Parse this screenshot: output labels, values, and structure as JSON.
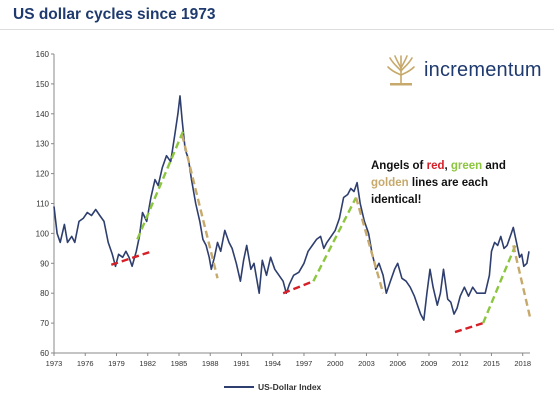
{
  "header": {
    "title": "US dollar cycles since 1973"
  },
  "logo": {
    "name": "incrementum",
    "icon": "tree-icon",
    "color": "#c6a96b"
  },
  "annotation": {
    "part1": "Angels of ",
    "red_word": "red",
    "sep1": ", ",
    "green_word": "green",
    "part2": " and",
    "gold_word": "golden",
    "part3": " lines are each identical!"
  },
  "chart_data": {
    "type": "line",
    "title": "US dollar cycles since 1973",
    "xlabel": "",
    "ylabel": "",
    "xlim": [
      1973,
      2018.7
    ],
    "ylim": [
      60,
      160
    ],
    "yticks": [
      60,
      70,
      80,
      90,
      100,
      110,
      120,
      130,
      140,
      150,
      160
    ],
    "xticks": [
      "1973",
      "1976",
      "1979",
      "1982",
      "1985",
      "1988",
      "1991",
      "1994",
      "1997",
      "2000",
      "2003",
      "2006",
      "2009",
      "2012",
      "2015",
      "2018"
    ],
    "legend": {
      "position": "bottom",
      "entries": [
        "US-Dollar Index"
      ]
    },
    "grid": false,
    "series": [
      {
        "name": "US-Dollar Index",
        "color": "#2e3e6e",
        "points": [
          [
            1973.0,
            109
          ],
          [
            1973.3,
            100
          ],
          [
            1973.6,
            97
          ],
          [
            1974.0,
            103
          ],
          [
            1974.3,
            97
          ],
          [
            1974.7,
            99
          ],
          [
            1975.0,
            97
          ],
          [
            1975.4,
            104
          ],
          [
            1975.8,
            105
          ],
          [
            1976.2,
            107
          ],
          [
            1976.6,
            106
          ],
          [
            1977.0,
            108
          ],
          [
            1977.4,
            106
          ],
          [
            1977.8,
            104
          ],
          [
            1978.2,
            97
          ],
          [
            1978.6,
            93
          ],
          [
            1978.9,
            89
          ],
          [
            1979.2,
            93
          ],
          [
            1979.6,
            92
          ],
          [
            1979.9,
            94
          ],
          [
            1980.2,
            92
          ],
          [
            1980.5,
            89
          ],
          [
            1980.9,
            94
          ],
          [
            1981.2,
            99
          ],
          [
            1981.5,
            107
          ],
          [
            1981.9,
            104
          ],
          [
            1982.3,
            112
          ],
          [
            1982.7,
            118
          ],
          [
            1983.0,
            116
          ],
          [
            1983.4,
            122
          ],
          [
            1983.8,
            126
          ],
          [
            1984.2,
            124
          ],
          [
            1984.6,
            133
          ],
          [
            1984.9,
            140
          ],
          [
            1985.1,
            146
          ],
          [
            1985.3,
            138
          ],
          [
            1985.6,
            128
          ],
          [
            1985.9,
            125
          ],
          [
            1986.2,
            118
          ],
          [
            1986.6,
            110
          ],
          [
            1987.0,
            104
          ],
          [
            1987.3,
            98
          ],
          [
            1987.6,
            96
          ],
          [
            1987.9,
            92
          ],
          [
            1988.1,
            88
          ],
          [
            1988.4,
            92
          ],
          [
            1988.7,
            97
          ],
          [
            1989.0,
            94
          ],
          [
            1989.4,
            101
          ],
          [
            1989.8,
            97
          ],
          [
            1990.1,
            95
          ],
          [
            1990.5,
            90
          ],
          [
            1990.9,
            84
          ],
          [
            1991.2,
            91
          ],
          [
            1991.5,
            96
          ],
          [
            1991.9,
            88
          ],
          [
            1992.2,
            90
          ],
          [
            1992.7,
            80
          ],
          [
            1993.0,
            91
          ],
          [
            1993.4,
            86
          ],
          [
            1993.8,
            92
          ],
          [
            1994.2,
            88
          ],
          [
            1994.6,
            86
          ],
          [
            1995.0,
            84
          ],
          [
            1995.3,
            80
          ],
          [
            1995.6,
            83
          ],
          [
            1996.0,
            86
          ],
          [
            1996.5,
            87
          ],
          [
            1997.0,
            90
          ],
          [
            1997.4,
            94
          ],
          [
            1997.8,
            96
          ],
          [
            1998.2,
            98
          ],
          [
            1998.6,
            99
          ],
          [
            1998.9,
            95
          ],
          [
            1999.2,
            97
          ],
          [
            1999.6,
            99
          ],
          [
            2000.0,
            101
          ],
          [
            2000.4,
            105
          ],
          [
            2000.8,
            112
          ],
          [
            2001.2,
            113
          ],
          [
            2001.5,
            115
          ],
          [
            2001.8,
            114
          ],
          [
            2002.1,
            117
          ],
          [
            2002.4,
            110
          ],
          [
            2002.8,
            104
          ],
          [
            2003.2,
            100
          ],
          [
            2003.5,
            94
          ],
          [
            2003.9,
            88
          ],
          [
            2004.2,
            90
          ],
          [
            2004.6,
            86
          ],
          [
            2004.9,
            80
          ],
          [
            2005.3,
            84
          ],
          [
            2005.7,
            88
          ],
          [
            2006.0,
            90
          ],
          [
            2006.4,
            85
          ],
          [
            2006.8,
            84
          ],
          [
            2007.2,
            82
          ],
          [
            2007.6,
            79
          ],
          [
            2007.9,
            76
          ],
          [
            2008.2,
            73
          ],
          [
            2008.5,
            71
          ],
          [
            2008.8,
            80
          ],
          [
            2009.1,
            88
          ],
          [
            2009.4,
            82
          ],
          [
            2009.8,
            76
          ],
          [
            2010.1,
            80
          ],
          [
            2010.4,
            88
          ],
          [
            2010.8,
            78
          ],
          [
            2011.1,
            77
          ],
          [
            2011.4,
            73
          ],
          [
            2011.7,
            75
          ],
          [
            2012.0,
            79
          ],
          [
            2012.4,
            82
          ],
          [
            2012.8,
            79
          ],
          [
            2013.2,
            82
          ],
          [
            2013.6,
            80
          ],
          [
            2014.0,
            80
          ],
          [
            2014.4,
            80
          ],
          [
            2014.8,
            86
          ],
          [
            2015.0,
            94
          ],
          [
            2015.3,
            97
          ],
          [
            2015.6,
            96
          ],
          [
            2015.9,
            99
          ],
          [
            2016.2,
            95
          ],
          [
            2016.5,
            96
          ],
          [
            2016.9,
            100
          ],
          [
            2017.1,
            102
          ],
          [
            2017.4,
            97
          ],
          [
            2017.7,
            92
          ],
          [
            2017.9,
            93
          ],
          [
            2018.1,
            89
          ],
          [
            2018.4,
            90
          ],
          [
            2018.6,
            94
          ]
        ]
      }
    ],
    "trend_lines": [
      {
        "color": "red",
        "hex": "#d61f26",
        "points": [
          [
            1978.5,
            89.5
          ],
          [
            1982.4,
            94
          ]
        ]
      },
      {
        "color": "red",
        "hex": "#d61f26",
        "points": [
          [
            1995.0,
            80
          ],
          [
            1997.9,
            84
          ]
        ]
      },
      {
        "color": "red",
        "hex": "#d61f26",
        "points": [
          [
            2011.5,
            67
          ],
          [
            2014.2,
            70
          ]
        ]
      },
      {
        "color": "green",
        "hex": "#8cc63f",
        "points": [
          [
            1981.0,
            98
          ],
          [
            1985.5,
            135
          ]
        ]
      },
      {
        "color": "green",
        "hex": "#8cc63f",
        "points": [
          [
            1997.9,
            84
          ],
          [
            2002.0,
            112
          ]
        ]
      },
      {
        "color": "green",
        "hex": "#8cc63f",
        "points": [
          [
            2014.2,
            70
          ],
          [
            2017.3,
            96
          ]
        ]
      },
      {
        "color": "golden",
        "hex": "#c6a96b",
        "points": [
          [
            1985.3,
            133
          ],
          [
            1988.7,
            85
          ]
        ]
      },
      {
        "color": "golden",
        "hex": "#c6a96b",
        "points": [
          [
            2002.0,
            112
          ],
          [
            2004.6,
            80
          ]
        ]
      },
      {
        "color": "golden",
        "hex": "#c6a96b",
        "points": [
          [
            2017.1,
            96
          ],
          [
            2018.7,
            72
          ]
        ]
      }
    ]
  }
}
